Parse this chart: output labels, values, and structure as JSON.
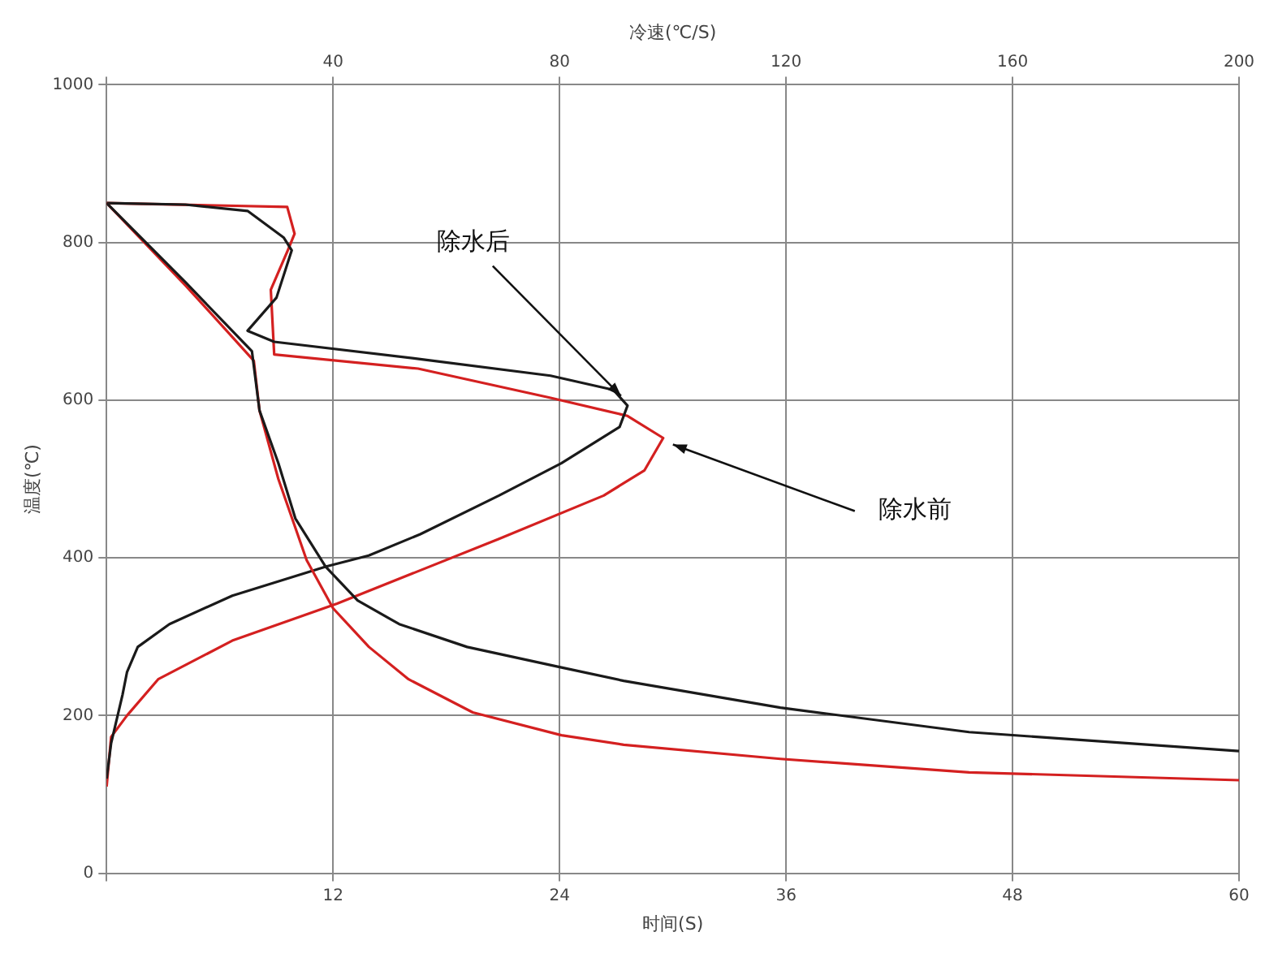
{
  "chart_data": {
    "type": "line",
    "xlabel": "时间(S)",
    "ylabel": "温度(℃)",
    "x2label": "冷速(℃/S)",
    "xlim": [
      0,
      60
    ],
    "xticks": [
      {
        "value": 0,
        "label": null
      },
      12,
      24,
      36,
      48,
      60
    ],
    "x2lim": [
      0,
      200
    ],
    "x2ticks": [
      {
        "value": 0,
        "label": null
      },
      40,
      80,
      120,
      160,
      200
    ],
    "ylim": [
      0,
      1000
    ],
    "yticks": [
      0,
      200,
      400,
      600,
      800,
      1000
    ],
    "grid": true,
    "legend": false,
    "marker": "none",
    "line_style": "solid",
    "series": [
      {
        "color": "#1a1a1a",
        "x": [
          0,
          4.2,
          7.7,
          8.1,
          9.1,
          10.0,
          11.6,
          13.3,
          15.5,
          19.1,
          24.1,
          27.4,
          35.7,
          45.7,
          60
        ],
        "values": [
          850,
          749,
          662,
          587,
          520,
          450,
          389,
          346,
          316,
          287,
          261,
          244,
          210,
          179,
          155
        ]
      },
      {
        "color": "#d42020",
        "x": [
          0,
          4.2,
          7.8,
          8.1,
          9.1,
          10.6,
          12.0,
          13.9,
          16.0,
          19.4,
          24.1,
          27.4,
          35.7,
          45.7,
          60
        ],
        "values": [
          850,
          745,
          650,
          587,
          500,
          397,
          336,
          287,
          246,
          204,
          175,
          163,
          145,
          128,
          118
        ]
      },
      {
        "name": "除水后",
        "color": "#1a1a1a",
        "axis": "x2",
        "x": [
          0,
          13.9,
          24.9,
          31.3,
          32.7,
          30,
          24.9,
          29.6,
          55.4,
          78.4,
          89.5,
          92.0,
          90.6,
          80.3,
          69.3,
          55.4,
          46.3,
          38.8,
          22.2,
          11.1,
          5.5,
          3.6,
          2.8,
          0.8,
          0
        ],
        "values": [
          850,
          848,
          840,
          806,
          790,
          730,
          688,
          674,
          652,
          631,
          613,
          593,
          566,
          520,
          479,
          430,
          403,
          389,
          352,
          316,
          287,
          255,
          226,
          165,
          120
        ]
      },
      {
        "name": "除水前",
        "color": "#d42020",
        "axis": "x2",
        "x": [
          0,
          31.9,
          33.2,
          32,
          29,
          29.6,
          55,
          78.4,
          92,
          98.3,
          95,
          87.8,
          69.3,
          40.7,
          22.2,
          9.1,
          3.6,
          0.8,
          0
        ],
        "values": [
          850,
          845,
          811,
          790,
          740,
          658,
          640,
          603,
          580,
          552,
          511,
          479,
          424,
          342,
          295,
          246,
          200,
          173,
          110
        ]
      }
    ]
  }
}
